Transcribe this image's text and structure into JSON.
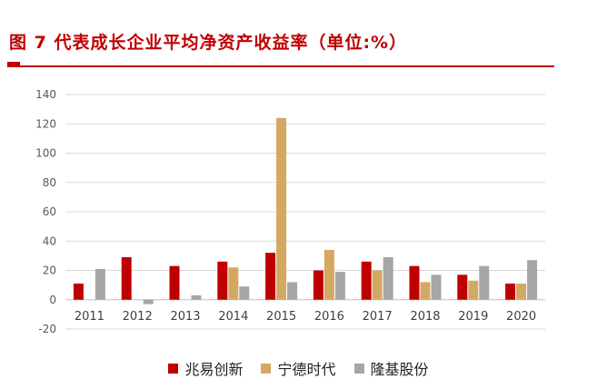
{
  "title": "图 7  代表成长企业平均净资产收益率（单位:%）",
  "colors": {
    "accent": "#c00000",
    "series": [
      "#c00000",
      "#d4a862",
      "#a6a6a6"
    ],
    "grid": "#d9d9d9",
    "axis_text": "#595959"
  },
  "chart_data": {
    "type": "bar",
    "categories": [
      "2011",
      "2012",
      "2013",
      "2014",
      "2015",
      "2016",
      "2017",
      "2018",
      "2019",
      "2020"
    ],
    "series": [
      {
        "name": "兆易创新",
        "values": [
          11,
          29,
          23,
          26,
          32,
          20,
          26,
          23,
          17,
          11
        ]
      },
      {
        "name": "宁德时代",
        "values": [
          0,
          0,
          0,
          22,
          124,
          34,
          20,
          12,
          13,
          11
        ]
      },
      {
        "name": "隆基股份",
        "values": [
          21,
          -3,
          3,
          9,
          12,
          19,
          29,
          17,
          23,
          27
        ]
      }
    ],
    "ylim": [
      -20,
      140
    ],
    "yticks": [
      "140",
      "120",
      "100",
      "80",
      "60",
      "40",
      "20",
      "0",
      "-20"
    ],
    "ytick_values": [
      140,
      120,
      100,
      80,
      60,
      40,
      20,
      0,
      -20
    ],
    "grid": true,
    "legend_position": "bottom"
  }
}
